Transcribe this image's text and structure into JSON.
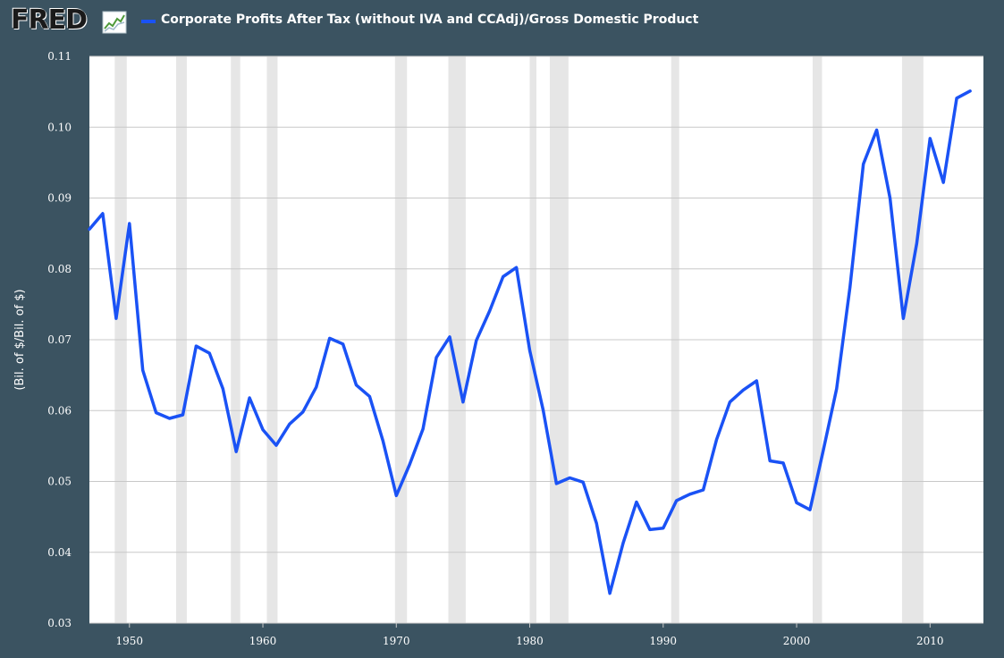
{
  "header": {
    "logo": "FRED",
    "logo_icon": "line-chart-icon",
    "legend_label": "Corporate Profits After Tax (without IVA and CCAdj)/Gross Domestic Product"
  },
  "chart_data": {
    "type": "line",
    "title": "",
    "xlabel": "",
    "ylabel": "(Bil. of $/Bil. of $)",
    "xlim": [
      1947,
      2014
    ],
    "ylim": [
      0.03,
      0.11
    ],
    "yticks": [
      "0.03",
      "0.04",
      "0.05",
      "0.06",
      "0.07",
      "0.08",
      "0.09",
      "0.10",
      "0.11"
    ],
    "xticks": [
      "1950",
      "1960",
      "1970",
      "1980",
      "1990",
      "2000",
      "2010"
    ],
    "grid": true,
    "legend_position": "top",
    "colors": {
      "line": "#1a52f5",
      "recession": "#e6e6e6",
      "plot_bg": "#ffffff",
      "frame_bg": "#3b5361"
    },
    "recessions": [
      [
        1948.9,
        1949.8
      ],
      [
        1953.5,
        1954.3
      ],
      [
        1957.6,
        1958.3
      ],
      [
        1960.3,
        1961.1
      ],
      [
        1969.9,
        1970.8
      ],
      [
        1973.9,
        1975.2
      ],
      [
        1980.0,
        1980.5
      ],
      [
        1981.5,
        1982.9
      ],
      [
        1990.6,
        1991.2
      ],
      [
        2001.2,
        2001.9
      ],
      [
        2007.9,
        2009.5
      ]
    ],
    "series": [
      {
        "x": [
          1947,
          1948,
          1949,
          1950,
          1951,
          1952,
          1953,
          1954,
          1955,
          1956,
          1957,
          1958,
          1959,
          1960,
          1961,
          1962,
          1963,
          1964,
          1965,
          1966,
          1967,
          1968,
          1969,
          1970,
          1971,
          1972,
          1973,
          1974,
          1975,
          1976,
          1977,
          1978,
          1979,
          1980,
          1981,
          1982,
          1983,
          1984,
          1985,
          1986,
          1987,
          1988,
          1989,
          1990,
          1991,
          1992,
          1993,
          1994,
          1995,
          1996,
          1997,
          1998,
          1999,
          2000,
          2001,
          2002,
          2003,
          2004,
          2005,
          2006,
          2007,
          2008,
          2009,
          2010,
          2011,
          2012,
          2013
        ],
        "values": [
          0.0856,
          0.0878,
          0.073,
          0.0864,
          0.0657,
          0.0597,
          0.0589,
          0.0594,
          0.0691,
          0.0681,
          0.0631,
          0.0542,
          0.0618,
          0.0573,
          0.0551,
          0.0581,
          0.0598,
          0.0633,
          0.0702,
          0.0694,
          0.0636,
          0.062,
          0.0557,
          0.048,
          0.0524,
          0.0574,
          0.0675,
          0.0704,
          0.0612,
          0.0699,
          0.0741,
          0.0789,
          0.0802,
          0.0685,
          0.0601,
          0.0497,
          0.0505,
          0.0499,
          0.0441,
          0.0342,
          0.0413,
          0.0471,
          0.0432,
          0.0434,
          0.0473,
          0.0482,
          0.0488,
          0.0559,
          0.0612,
          0.0629,
          0.0642,
          0.0529,
          0.0526,
          0.047,
          0.046,
          0.0544,
          0.0631,
          0.0774,
          0.0948,
          0.0996,
          0.09,
          0.073,
          0.0836,
          0.0984,
          0.0922,
          0.1041,
          0.1051
        ]
      }
    ]
  }
}
